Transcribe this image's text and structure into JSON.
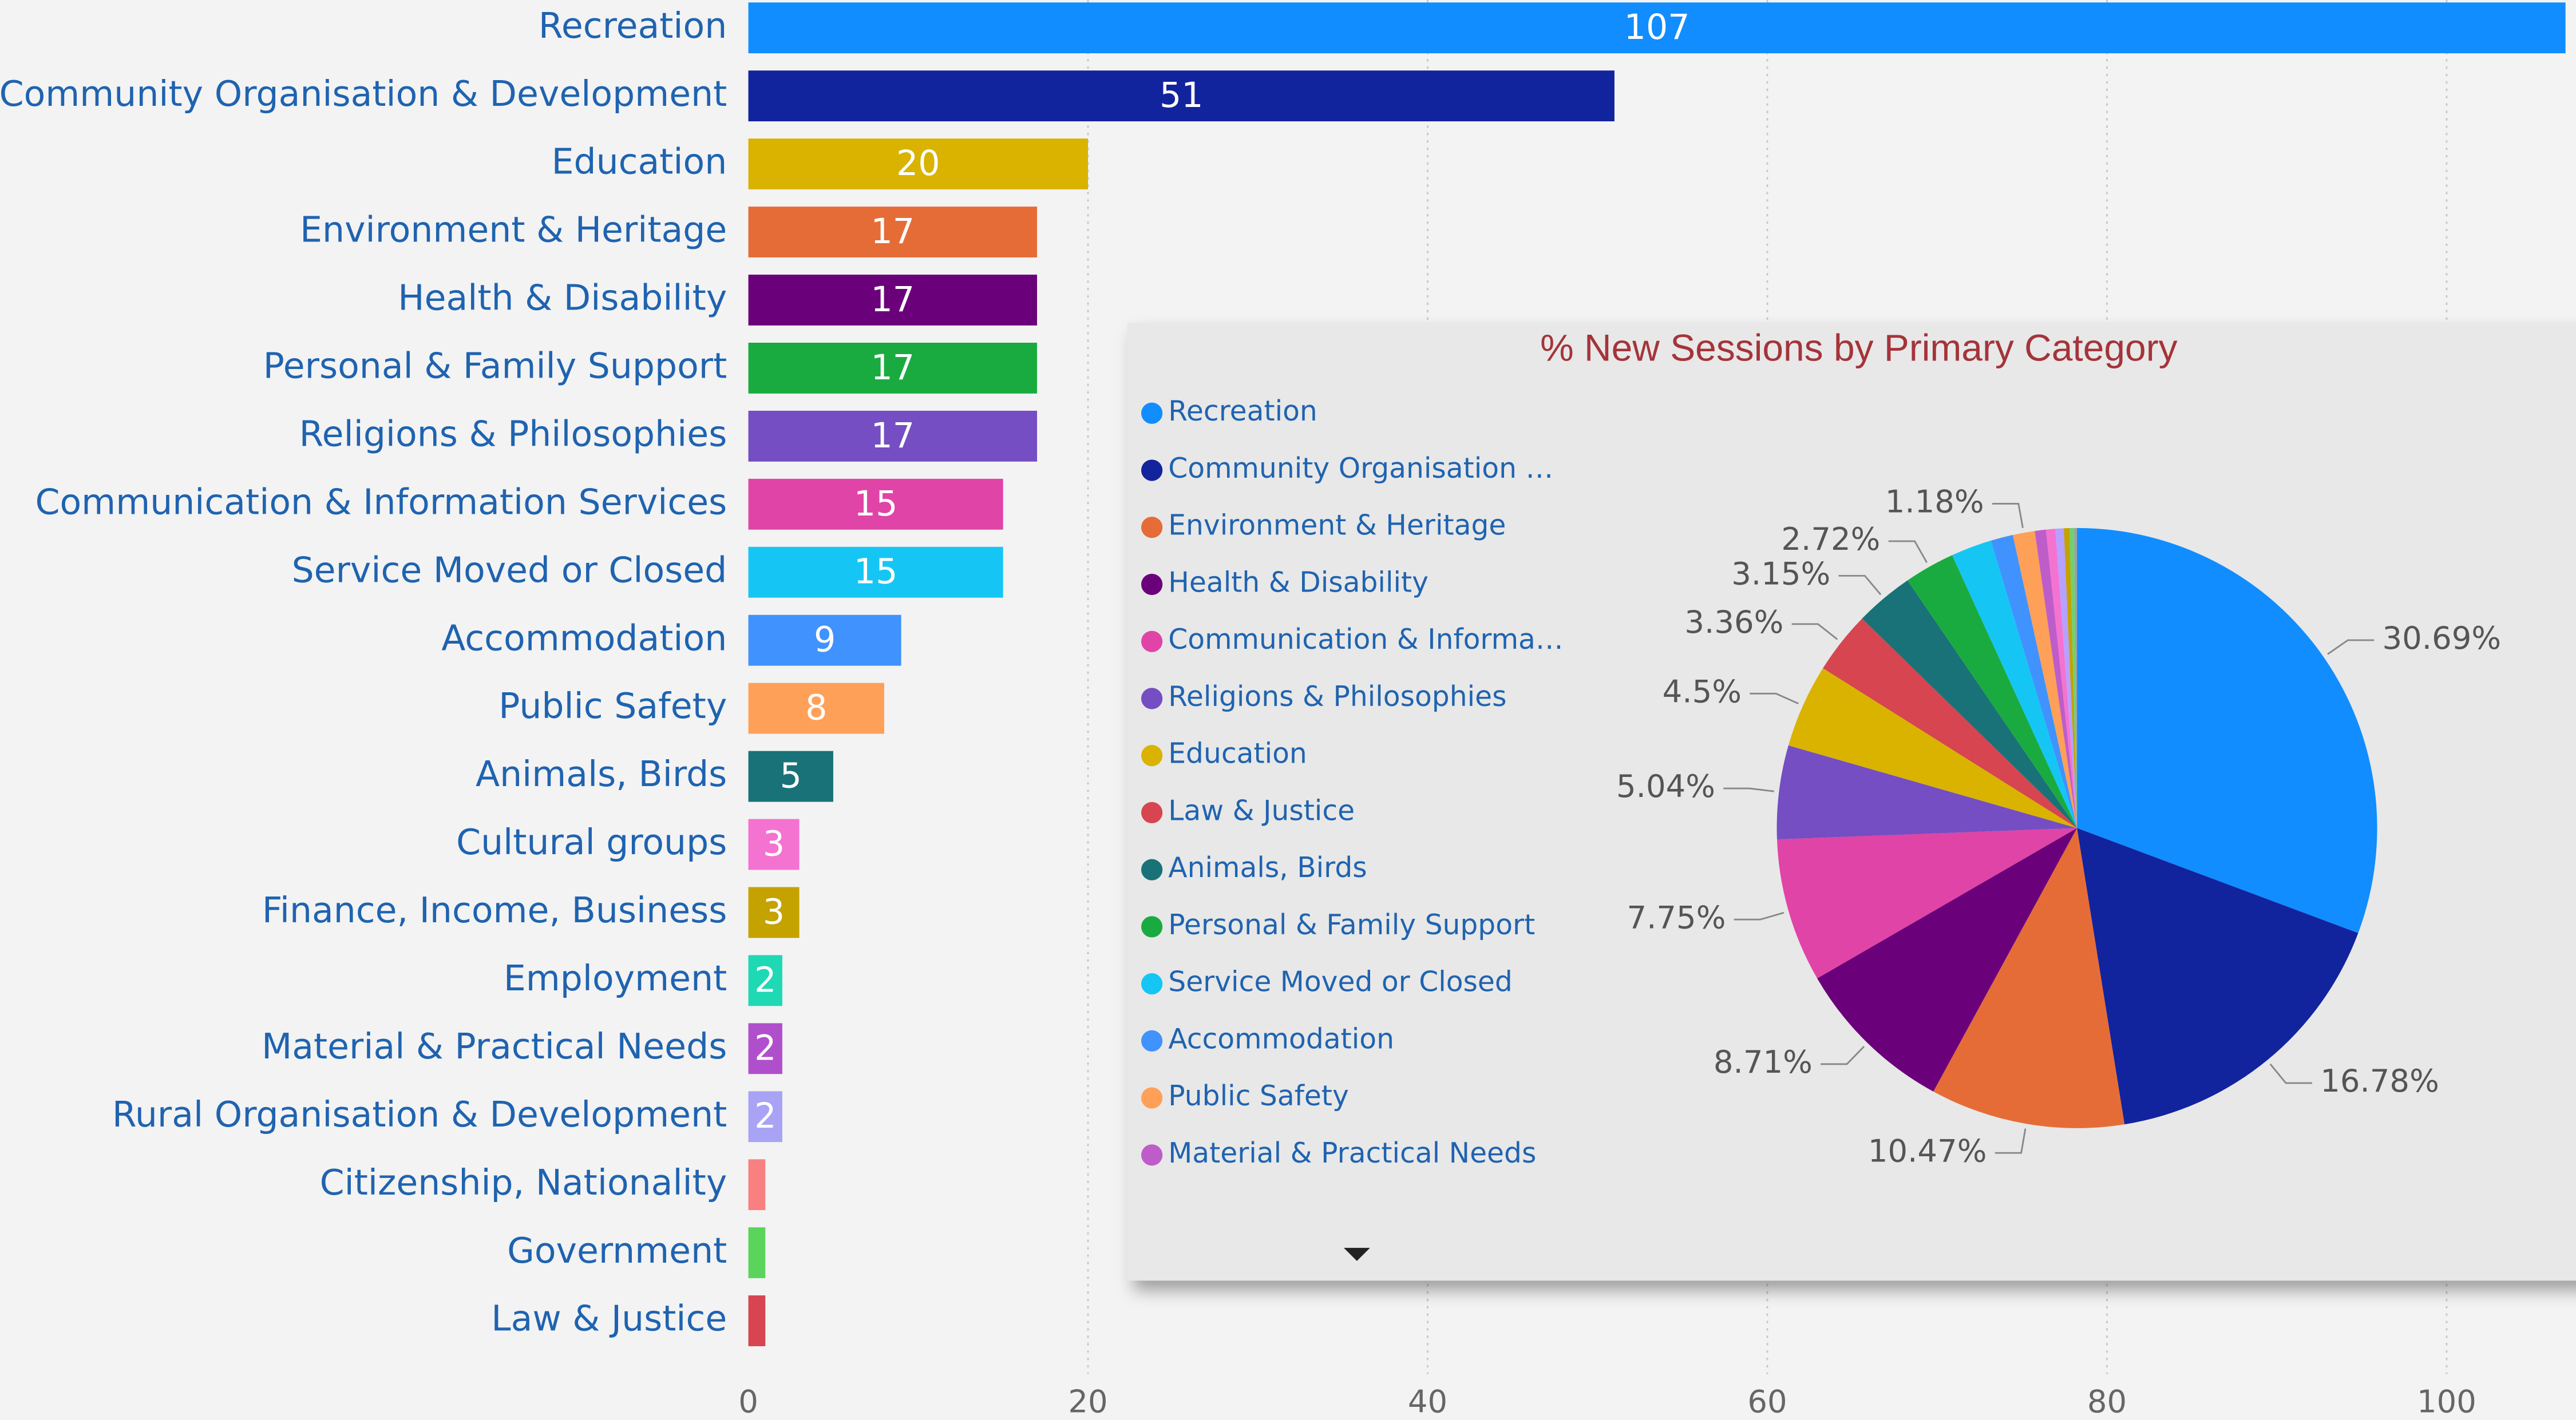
{
  "chart_data": [
    {
      "type": "bar",
      "categories": [
        "Recreation",
        "Community Organisation & Development",
        "Education",
        "Environment & Heritage",
        "Health & Disability",
        "Personal & Family Support",
        "Religions & Philosophies",
        "Communication & Information Services",
        "Service Moved or Closed",
        "Accommodation",
        "Public Safety",
        "Animals, Birds",
        "Cultural groups",
        "Finance, Income, Business",
        "Employment",
        "Material & Practical Needs",
        "Rural Organisation & Development",
        "Citizenship, Nationality",
        "Government",
        "Law & Justice"
      ],
      "values": [
        107,
        51,
        20,
        17,
        17,
        17,
        17,
        15,
        15,
        9,
        8,
        5,
        3,
        3,
        2,
        2,
        2,
        1,
        1,
        1
      ],
      "colors": [
        "#118dff",
        "#12239e",
        "#d9b300",
        "#e66c37",
        "#6b007b",
        "#1aab40",
        "#744ec2",
        "#e044a7",
        "#15c6f4",
        "#4092ff",
        "#ffa058",
        "#197278",
        "#f472d0",
        "#c4a200",
        "#1fd8b4",
        "#b04fcc",
        "#a9a3f5",
        "#f88080",
        "#5ad45a",
        "#d64550"
      ],
      "xlim": [
        0,
        107.5
      ],
      "xticks": [
        0,
        20,
        40,
        60,
        80,
        100
      ],
      "grid": true
    },
    {
      "type": "pie",
      "title": "% New Sessions by Primary Category",
      "categories": [
        "Recreation",
        "Community Organisation …",
        "Environment & Heritage",
        "Health & Disability",
        "Communication & Informa…",
        "Religions & Philosophies",
        "Education",
        "Law & Justice",
        "Animals, Birds",
        "Personal & Family Support",
        "Service Moved or Closed",
        "Accommodation",
        "Public Safety",
        "Material & Practical Needs",
        null,
        null,
        null,
        null,
        null
      ],
      "values": [
        30.69,
        16.78,
        10.47,
        8.71,
        7.75,
        5.04,
        4.5,
        3.36,
        3.15,
        2.72,
        2.2,
        1.2,
        1.18,
        0.6,
        0.5,
        0.45,
        0.3,
        0.25,
        0.15
      ],
      "value_labels": [
        "30.69%",
        "16.78%",
        "10.47%",
        "8.71%",
        "7.75%",
        "5.04%",
        "4.5%",
        "3.36%",
        "3.15%",
        "2.72%",
        null,
        null,
        "1.18%",
        null,
        null,
        null,
        null,
        null,
        null
      ],
      "colors": [
        "#118dff",
        "#12239e",
        "#e66c37",
        "#6b007b",
        "#e044a7",
        "#744ec2",
        "#d9b300",
        "#d64550",
        "#197278",
        "#1aab40",
        "#15c6f4",
        "#4092ff",
        "#ffa058",
        "#be5dc9",
        "#f472d0",
        "#b5a1ff",
        "#c4a200",
        "#6fd16f",
        "#a0a0a0"
      ]
    }
  ]
}
